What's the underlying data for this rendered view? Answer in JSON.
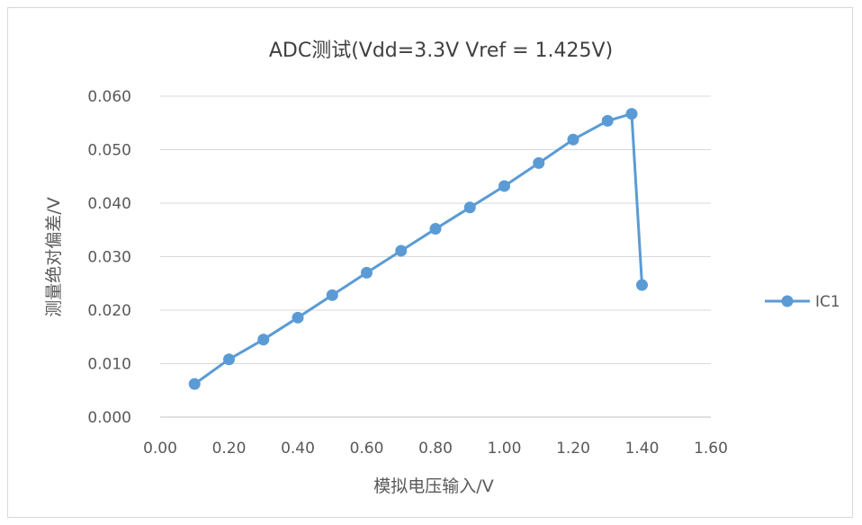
{
  "chart_data": {
    "type": "scatter",
    "title": "ADC测试(Vdd=3.3V  Vref = 1.425V)",
    "xlabel": "模拟电压输入/V",
    "ylabel": "测量绝对偏差/V",
    "xlim": [
      0,
      1.6
    ],
    "ylim": [
      0,
      0.06
    ],
    "xticks": [
      "0.00",
      "0.20",
      "0.40",
      "0.60",
      "0.80",
      "1.00",
      "1.20",
      "1.40",
      "1.60"
    ],
    "yticks": [
      "0.000",
      "0.010",
      "0.020",
      "0.030",
      "0.040",
      "0.050",
      "0.060"
    ],
    "grid": "horizontal",
    "legend_position": "right",
    "line_color": "#5b9bd5",
    "series": [
      {
        "name": "IC1",
        "x": [
          0.1,
          0.2,
          0.3,
          0.4,
          0.5,
          0.6,
          0.7,
          0.8,
          0.9,
          1.0,
          1.1,
          1.2,
          1.3,
          1.37,
          1.4
        ],
        "y": [
          0.0062,
          0.0108,
          0.0145,
          0.0186,
          0.0228,
          0.027,
          0.0311,
          0.0352,
          0.0392,
          0.0432,
          0.0475,
          0.0519,
          0.0554,
          0.0567,
          0.0247
        ]
      }
    ]
  }
}
